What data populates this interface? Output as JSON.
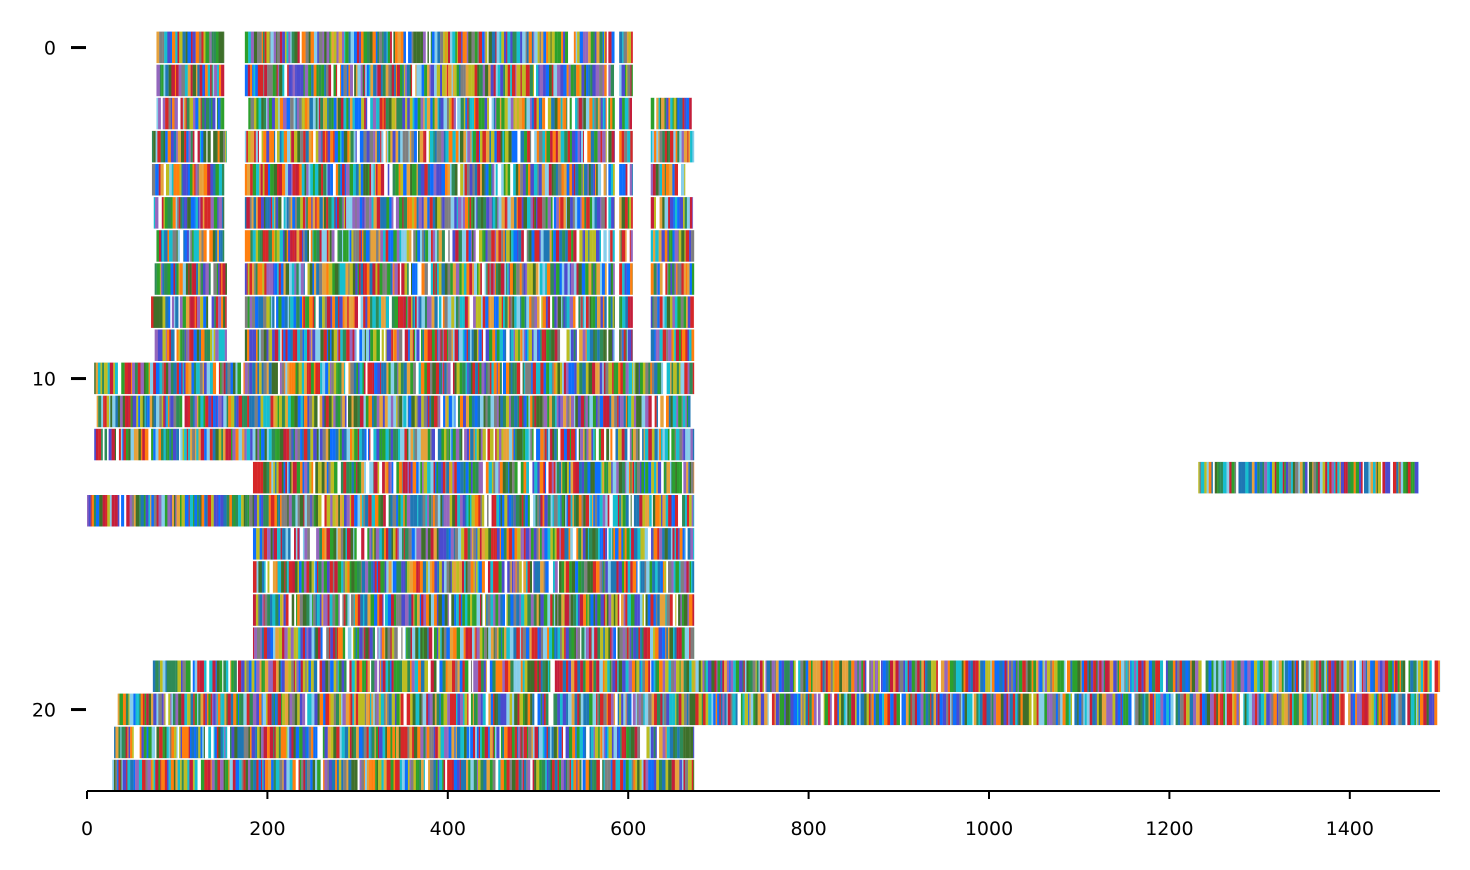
{
  "chart_data": {
    "type": "heatmap",
    "title": "",
    "xlabel": "",
    "ylabel": "",
    "xlim": [
      0,
      1500
    ],
    "ylim": [
      22.5,
      -0.5
    ],
    "x_ticks": [
      "0",
      "200",
      "400",
      "600",
      "800",
      "1000",
      "1200",
      "1400"
    ],
    "y_ticks": [
      "0",
      "10",
      "20"
    ],
    "grid": false,
    "legend": "none",
    "palette": [
      "#2ca02c",
      "#ff7f0e",
      "#1f77b4",
      "#d62728",
      "#9467bd",
      "#17becf",
      "#bcbd22",
      "#3e6f2a",
      "#4b4bcf",
      "#e6a23c",
      "#7f7f7f",
      "#0d6efd",
      "#2e8b57",
      "#c41e3a",
      "#87ceeb"
    ],
    "rows": [
      {
        "row": 0,
        "segments": [
          [
            77,
            152
          ],
          [
            175,
            576
          ],
          [
            578,
            585
          ],
          [
            590,
            605
          ]
        ]
      },
      {
        "row": 1,
        "segments": [
          [
            77,
            152
          ],
          [
            175,
            576
          ],
          [
            578,
            585
          ],
          [
            590,
            605
          ]
        ]
      },
      {
        "row": 2,
        "segments": [
          [
            77,
            152
          ],
          [
            175,
            576
          ],
          [
            578,
            585
          ],
          [
            590,
            605
          ],
          [
            625,
            673
          ]
        ]
      },
      {
        "row": 3,
        "segments": [
          [
            72,
            155
          ],
          [
            175,
            576
          ],
          [
            578,
            585
          ],
          [
            590,
            605
          ],
          [
            625,
            673
          ]
        ]
      },
      {
        "row": 4,
        "segments": [
          [
            72,
            152
          ],
          [
            175,
            576
          ],
          [
            578,
            585
          ],
          [
            590,
            605
          ],
          [
            625,
            673
          ]
        ]
      },
      {
        "row": 5,
        "segments": [
          [
            74,
            152
          ],
          [
            175,
            576
          ],
          [
            578,
            585
          ],
          [
            590,
            605
          ],
          [
            625,
            673
          ]
        ]
      },
      {
        "row": 6,
        "segments": [
          [
            77,
            152
          ],
          [
            175,
            576
          ],
          [
            578,
            585
          ],
          [
            590,
            605
          ],
          [
            625,
            673
          ]
        ]
      },
      {
        "row": 7,
        "segments": [
          [
            75,
            155
          ],
          [
            175,
            576
          ],
          [
            578,
            585
          ],
          [
            590,
            605
          ],
          [
            625,
            673
          ]
        ]
      },
      {
        "row": 8,
        "segments": [
          [
            71,
            155
          ],
          [
            175,
            576
          ],
          [
            578,
            585
          ],
          [
            590,
            605
          ],
          [
            625,
            673
          ]
        ]
      },
      {
        "row": 9,
        "segments": [
          [
            75,
            155
          ],
          [
            175,
            576
          ],
          [
            578,
            585
          ],
          [
            590,
            605
          ],
          [
            625,
            673
          ]
        ]
      },
      {
        "row": 10,
        "segments": [
          [
            8,
            673
          ]
        ]
      },
      {
        "row": 11,
        "segments": [
          [
            8,
            673
          ]
        ]
      },
      {
        "row": 12,
        "segments": [
          [
            8,
            673
          ]
        ]
      },
      {
        "row": 13,
        "segments": [
          [
            184,
            673
          ],
          [
            1232,
            1476
          ]
        ]
      },
      {
        "row": 14,
        "segments": [
          [
            0,
            673
          ]
        ]
      },
      {
        "row": 15,
        "segments": [
          [
            184,
            673
          ]
        ]
      },
      {
        "row": 16,
        "segments": [
          [
            184,
            673
          ]
        ]
      },
      {
        "row": 17,
        "segments": [
          [
            184,
            673
          ]
        ]
      },
      {
        "row": 18,
        "segments": [
          [
            184,
            673
          ]
        ]
      },
      {
        "row": 19,
        "segments": [
          [
            73,
            1500
          ]
        ]
      },
      {
        "row": 20,
        "segments": [
          [
            34,
            1500
          ]
        ]
      },
      {
        "row": 21,
        "segments": [
          [
            30,
            673
          ]
        ]
      },
      {
        "row": 22,
        "segments": [
          [
            28,
            673
          ]
        ]
      }
    ]
  }
}
